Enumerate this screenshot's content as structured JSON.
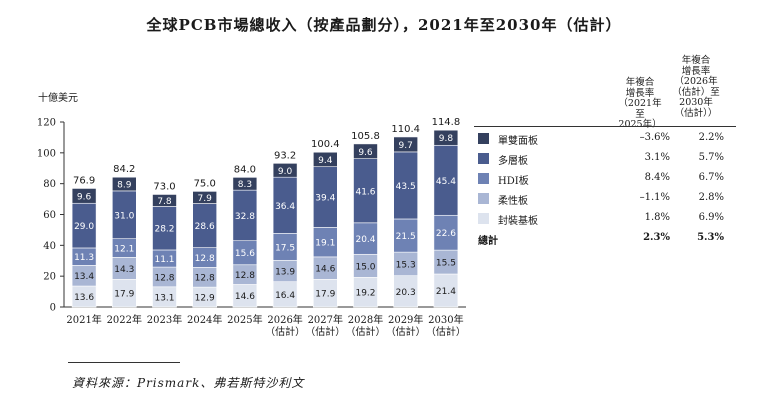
{
  "title": "全球PCB市場總收入（按產品劃分），2021年至2030年（估計）",
  "source": "資料來源：Prismark、弗若斯特沙利文",
  "colors": {
    "單雙面板": "#34405e",
    "多層板": "#4a5c8e",
    "HDI板": "#6e82b4",
    "柔性板": "#a9b6d4",
    "封裝基板": "#dde3ee"
  },
  "chart_data": {
    "type": "bar",
    "stacked": true,
    "title": "全球PCB市場總收入（按產品劃分），2021年至2030年（估計）",
    "ylabel": "十億美元",
    "ylim": [
      0,
      120
    ],
    "yticks": [
      0,
      20,
      40,
      60,
      80,
      100,
      120
    ],
    "categories": [
      [
        "2021年"
      ],
      [
        "2022年"
      ],
      [
        "2023年"
      ],
      [
        "2024年"
      ],
      [
        "2025年"
      ],
      [
        "2026年",
        "（估計）"
      ],
      [
        "2027年",
        "（估計）"
      ],
      [
        "2028年",
        "（估計）"
      ],
      [
        "2029年",
        "（估計）"
      ],
      [
        "2030年",
        "（估計）"
      ]
    ],
    "series": [
      {
        "name": "封裝基板",
        "values": [
          13.6,
          17.9,
          13.1,
          12.9,
          14.6,
          16.4,
          17.9,
          19.2,
          20.3,
          21.4
        ]
      },
      {
        "name": "柔性板",
        "values": [
          13.4,
          14.3,
          12.8,
          12.8,
          12.8,
          13.9,
          14.6,
          15.0,
          15.3,
          15.5
        ]
      },
      {
        "name": "HDI板",
        "values": [
          11.3,
          12.1,
          11.1,
          12.8,
          15.6,
          17.5,
          19.1,
          20.4,
          21.5,
          22.6
        ]
      },
      {
        "name": "多層板",
        "values": [
          29.0,
          31.0,
          28.2,
          28.6,
          32.8,
          36.4,
          39.4,
          41.6,
          43.5,
          45.4
        ]
      },
      {
        "name": "單雙面板",
        "values": [
          9.6,
          8.9,
          7.8,
          7.9,
          8.3,
          9.0,
          9.4,
          9.6,
          9.7,
          9.8
        ]
      }
    ],
    "totals": [
      76.9,
      84.2,
      73.0,
      75.0,
      84.0,
      93.2,
      100.4,
      105.8,
      110.4,
      114.8
    ]
  },
  "legend": {
    "col1_header": [
      "年複合",
      "增長率",
      "（2021年至",
      "2025年）"
    ],
    "col2_header": [
      "年複合",
      "增長率",
      "（2026年",
      "（估計）至",
      "2030年",
      "（估計））"
    ],
    "rows": [
      {
        "name": "單雙面板",
        "cagr1": "–3.6%",
        "cagr2": "2.2%"
      },
      {
        "name": "多層板",
        "cagr1": "3.1%",
        "cagr2": "5.7%"
      },
      {
        "name": "HDI板",
        "cagr1": "8.4%",
        "cagr2": "6.7%"
      },
      {
        "name": "柔性板",
        "cagr1": "–1.1%",
        "cagr2": "2.8%"
      },
      {
        "name": "封裝基板",
        "cagr1": "1.8%",
        "cagr2": "6.9%"
      }
    ],
    "total": {
      "name": "總計",
      "cagr1": "2.3%",
      "cagr2": "5.3%"
    }
  }
}
